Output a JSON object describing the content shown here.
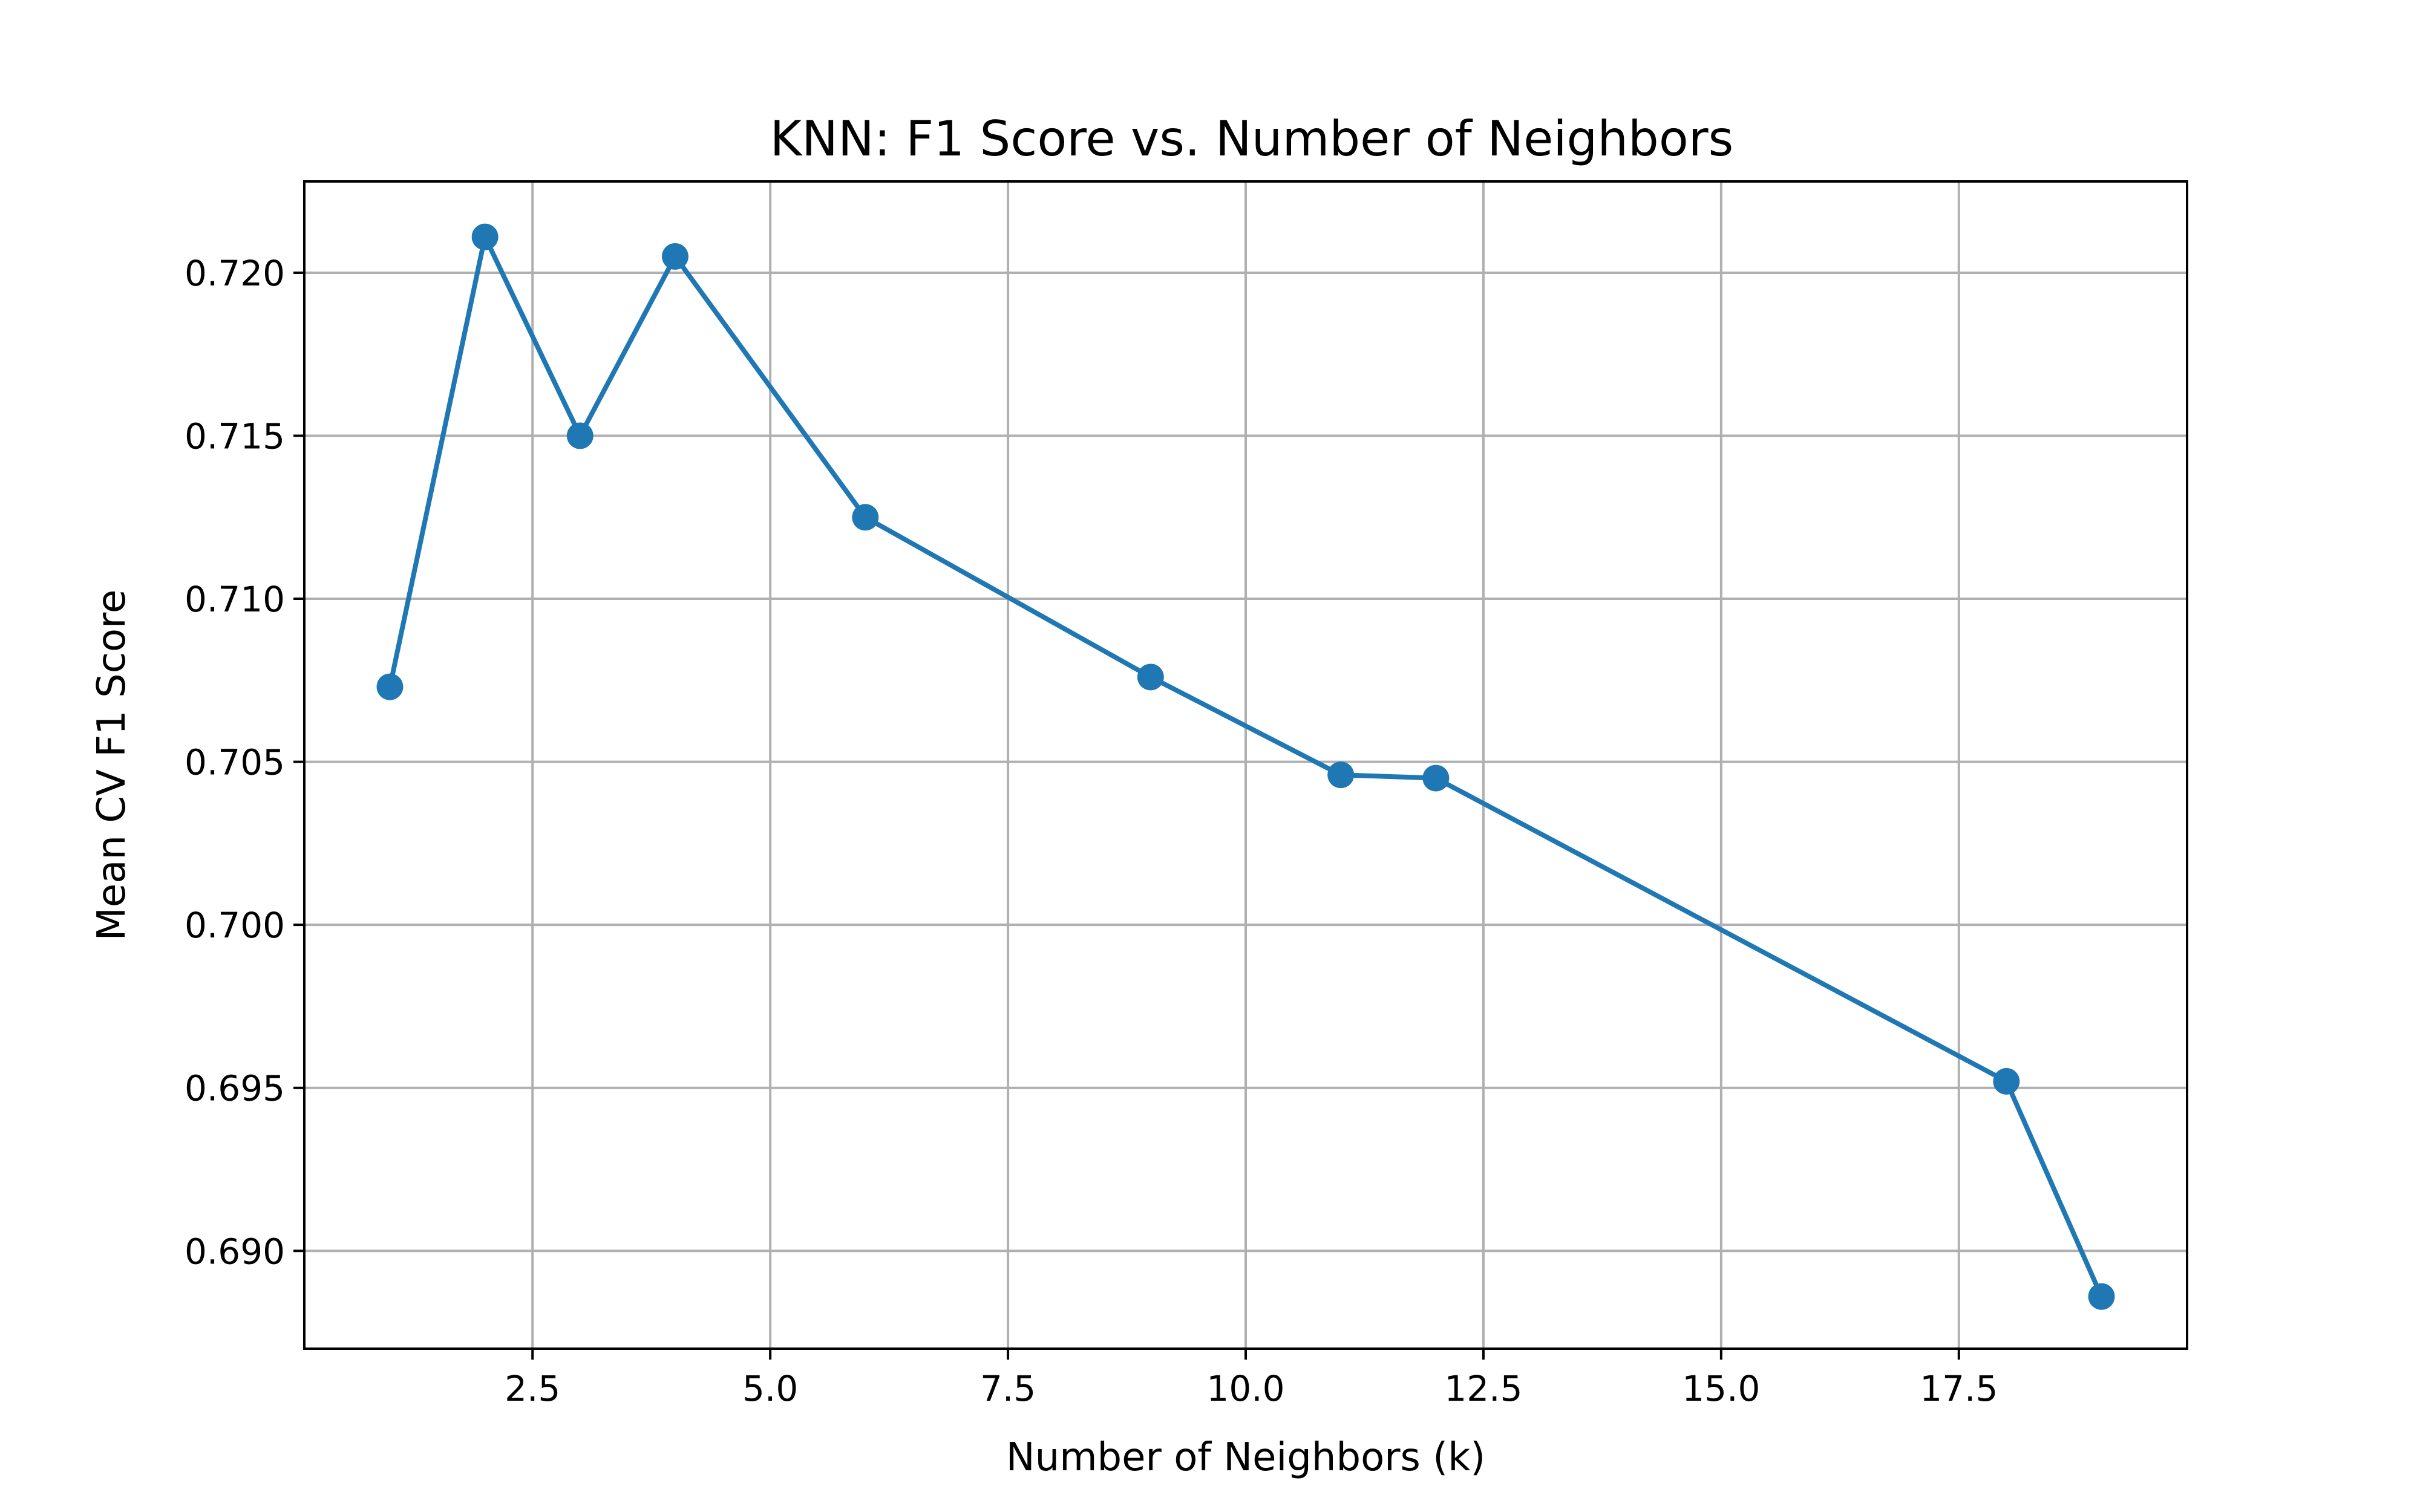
{
  "chart_data": {
    "type": "line",
    "title": "KNN: F1 Score vs. Number of Neighbors",
    "xlabel": "Number of Neighbors (k)",
    "ylabel": "Mean CV F1 Score",
    "xlim": [
      0.1,
      19.9
    ],
    "ylim": [
      0.687,
      0.7228
    ],
    "grid": true,
    "x_ticks": [
      2.5,
      5.0,
      7.5,
      10.0,
      12.5,
      15.0,
      17.5
    ],
    "x_tick_labels": [
      "2.5",
      "5.0",
      "7.5",
      "10.0",
      "12.5",
      "15.0",
      "17.5"
    ],
    "y_ticks": [
      0.69,
      0.695,
      0.7,
      0.705,
      0.71,
      0.715,
      0.72
    ],
    "y_tick_labels": [
      "0.690",
      "0.695",
      "0.700",
      "0.705",
      "0.710",
      "0.715",
      "0.720"
    ],
    "series": [
      {
        "color": "#1f77b4",
        "marker": "circle",
        "x": [
          1,
          2,
          3,
          4,
          6,
          9,
          11,
          12,
          18,
          19
        ],
        "y": [
          0.7073,
          0.7211,
          0.715,
          0.7205,
          0.7125,
          0.7076,
          0.7046,
          0.7045,
          0.6952,
          0.6886
        ]
      }
    ]
  }
}
